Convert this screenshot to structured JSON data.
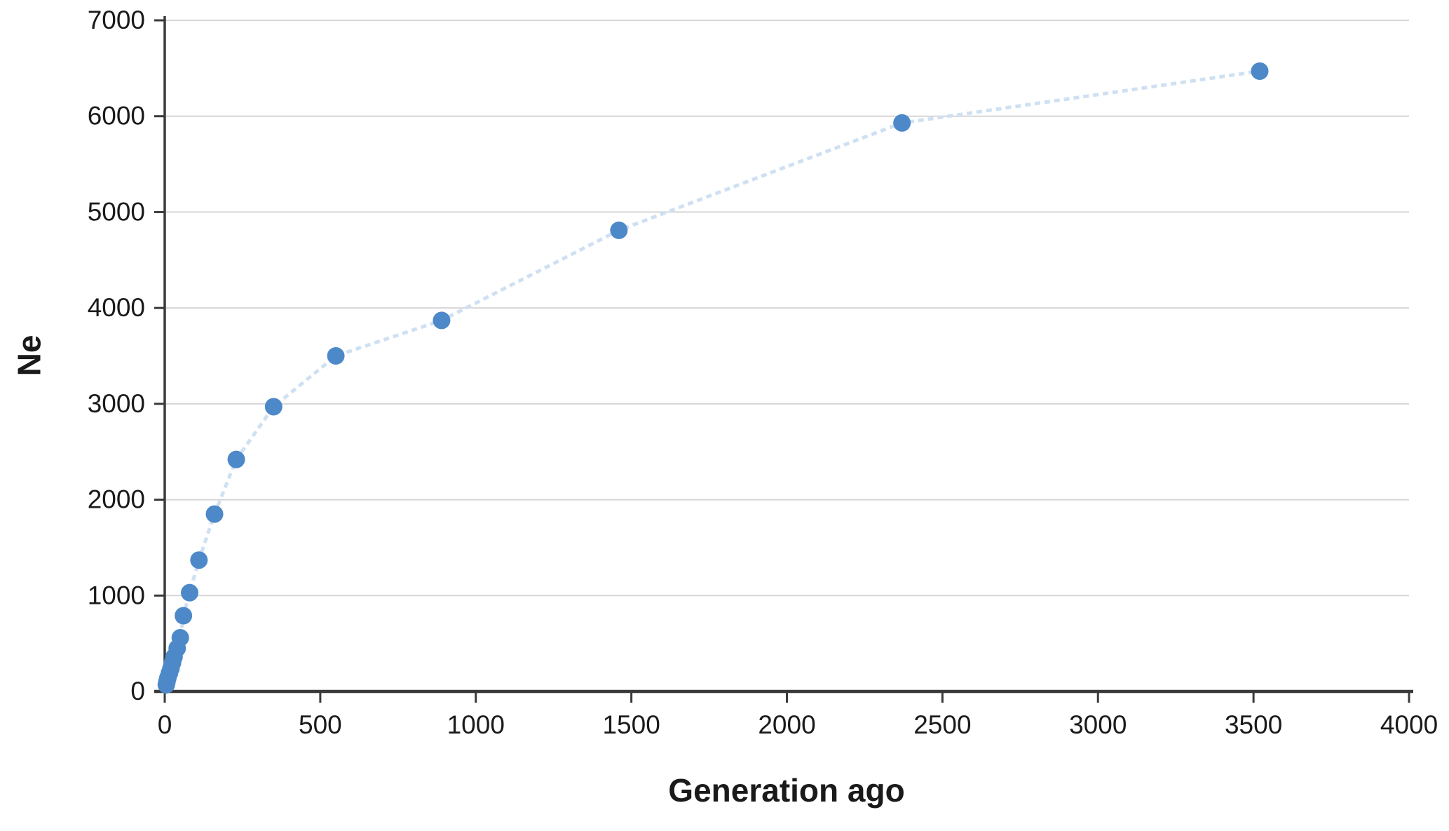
{
  "figure": {
    "background_color": "#ffffff",
    "text_color": "#1a1a1a",
    "gridline_color": "#d6d6d6",
    "axis_color": "#3a3a3a"
  },
  "chart_data": {
    "type": "line",
    "title": "",
    "xlabel": "Generation ago",
    "ylabel": "Ne",
    "xlim": [
      0,
      4000
    ],
    "ylim": [
      0,
      7000
    ],
    "xticks": [
      0,
      500,
      1000,
      1500,
      2000,
      2500,
      3000,
      3500,
      4000
    ],
    "yticks": [
      0,
      1000,
      2000,
      3000,
      4000,
      5000,
      6000,
      7000
    ],
    "grid": "horizontal",
    "legend_position": "none",
    "series": [
      {
        "name": "Ne",
        "marker": "circle",
        "marker_color": "#4d89c8",
        "line_color": "#cfe0f2",
        "line_style": "dashed",
        "x": [
          5,
          7,
          10,
          15,
          20,
          25,
          30,
          40,
          50,
          60,
          80,
          110,
          160,
          230,
          350,
          550,
          890,
          1460,
          2370,
          3520
        ],
        "y": [
          70,
          100,
          140,
          190,
          240,
          300,
          360,
          450,
          560,
          790,
          1030,
          1370,
          1850,
          2420,
          2970,
          3500,
          3870,
          4810,
          5930,
          6470
        ]
      }
    ]
  }
}
